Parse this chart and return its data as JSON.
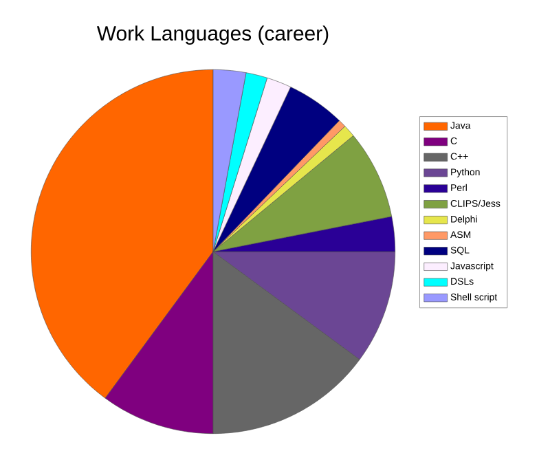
{
  "chart_data": {
    "type": "pie",
    "title": "Work Languages (career)",
    "legend": "right",
    "categories": [
      "Java",
      "C",
      "C++",
      "Python",
      "Perl",
      "CLIPS/Jess",
      "Delphi",
      "ASM",
      "SQL",
      "Javascript",
      "DSLs",
      "Shell script"
    ],
    "values": [
      39.9,
      10.1,
      14.9,
      10.1,
      3.1,
      7.9,
      1.1,
      0.7,
      5.2,
      2.2,
      1.9,
      2.9
    ],
    "colors": [
      "#ff6600",
      "#7f007f",
      "#666666",
      "#6b4694",
      "#2a0096",
      "#7fa142",
      "#e6e64c",
      "#ff9966",
      "#000080",
      "#fceeff",
      "#00ffff",
      "#9999ff"
    ]
  }
}
